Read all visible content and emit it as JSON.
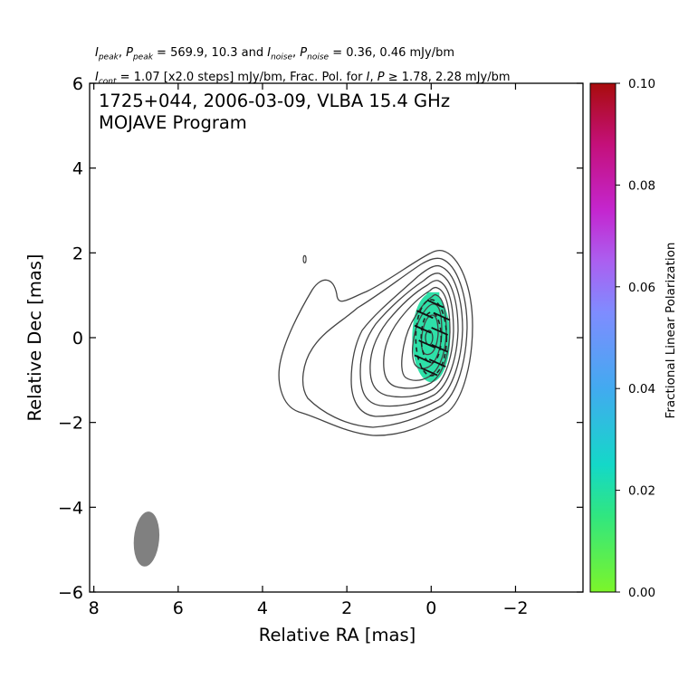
{
  "header": {
    "line1": "I_peak, P_peak = 569.9, 10.3 and I_noise, P_noise = 0.36, 0.46 mJy/bm",
    "line2": "I_cont = 1.07 [x2.0 steps] mJy/bm, Frac. Pol. for I, P ≥ 1.78, 2.28 mJy/bm"
  },
  "chart_data": {
    "type": "contour",
    "title": "1725+044, 2006-03-09, VLBA 15.4 GHz",
    "subtitle": "MOJAVE Program",
    "xlabel": "Relative RA [mas]",
    "ylabel": "Relative Dec [mas]",
    "xlim": [
      8.1,
      -3.6
    ],
    "ylim": [
      -6.0,
      6.0
    ],
    "xticks": [
      8,
      6,
      4,
      2,
      0,
      -2
    ],
    "yticks": [
      6,
      4,
      2,
      0,
      -2,
      -4,
      -6
    ],
    "colorbar": {
      "label": "Fractional Linear Polarization",
      "range": [
        0.0,
        0.1
      ],
      "ticks": [
        "0.00",
        "0.02",
        "0.04",
        "0.06",
        "0.08",
        "0.10"
      ],
      "colors": [
        "#7cf52a",
        "#19d8a0",
        "#2cb8e0",
        "#6f96ff",
        "#a66cf0",
        "#c620c6",
        "#c01060",
        "#a80c0c"
      ]
    },
    "contour_levels_mJy_per_bm": [
      1.07,
      2.14,
      4.28,
      8.56,
      17.12,
      34.24,
      68.48,
      136.96,
      273.92
    ],
    "core": {
      "x": 0.0,
      "y": 0.0,
      "peak_mJy_per_bm": 569.9
    },
    "polarization_region": {
      "x": 0.0,
      "y": 0.0,
      "width": 0.9,
      "height": 2.1,
      "frac_pol": 0.017,
      "color": "#2ee0a8"
    },
    "evpa_ticks": [
      {
        "x": -0.1,
        "y": 0.8
      },
      {
        "x": 0.15,
        "y": 0.55
      },
      {
        "x": -0.25,
        "y": 0.5
      },
      {
        "x": 0.2,
        "y": 0.2
      },
      {
        "x": -0.2,
        "y": 0.15
      },
      {
        "x": 0.1,
        "y": -0.15
      },
      {
        "x": -0.2,
        "y": -0.25
      },
      {
        "x": 0.2,
        "y": -0.5
      },
      {
        "x": -0.15,
        "y": -0.6
      },
      {
        "x": 0.05,
        "y": -0.8
      }
    ],
    "beam": {
      "x": 6.75,
      "y": -4.75,
      "major_mas": 1.3,
      "minor_mas": 0.6,
      "pa_deg": 0
    },
    "extra_component": {
      "x": 3.0,
      "y": 1.85
    }
  }
}
